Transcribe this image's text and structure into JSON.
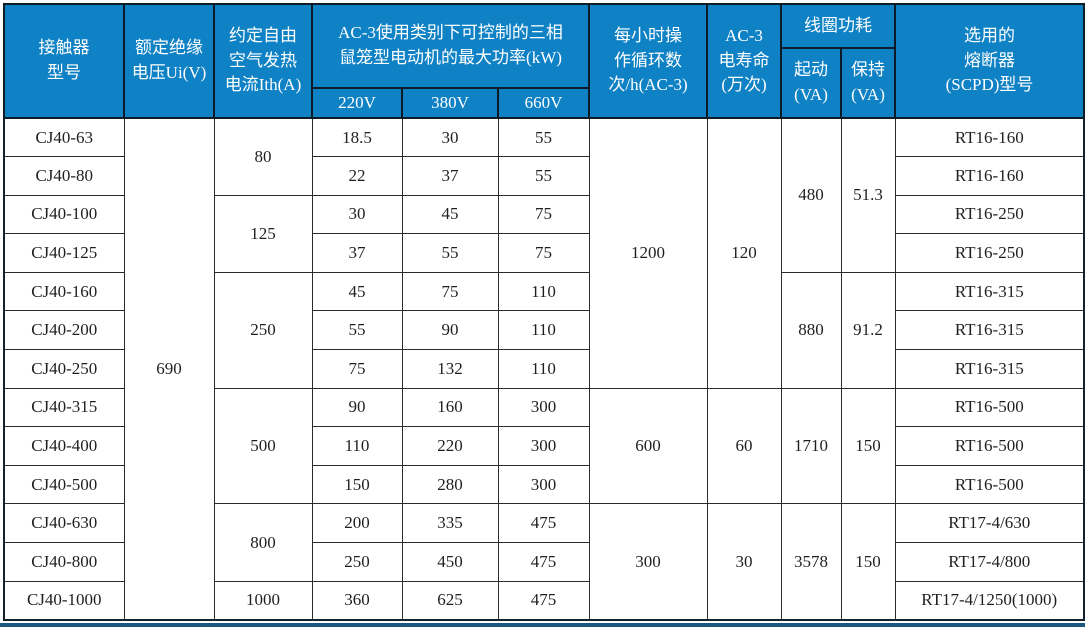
{
  "table": {
    "header": {
      "model": "接触器\n型号",
      "insulation": "额定绝缘\n电压Ui(V)",
      "thermal": "约定自由\n空气发热\n电流Ith(A)",
      "ac3_power": "AC-3使用类别下可控制的三相\n鼠笼型电动机的最大功率(kW)",
      "voltages": [
        "220V",
        "380V",
        "660V"
      ],
      "cycles": "每小时操\n作循环数\n次/h(AC-3)",
      "life": "AC-3\n电寿命\n(万次)",
      "coil": "线圈功耗",
      "coil_start": "起动\n(VA)",
      "coil_hold": "保持\n(VA)",
      "fuse": "选用的\n熔断器\n(SCPD)型号"
    },
    "rows": [
      {
        "model": "CJ40-63",
        "kw220": "18.5",
        "kw380": "30",
        "kw660": "55",
        "fuse": "RT16-160"
      },
      {
        "model": "CJ40-80",
        "kw220": "22",
        "kw380": "37",
        "kw660": "55",
        "fuse": "RT16-160"
      },
      {
        "model": "CJ40-100",
        "kw220": "30",
        "kw380": "45",
        "kw660": "75",
        "fuse": "RT16-250"
      },
      {
        "model": "CJ40-125",
        "kw220": "37",
        "kw380": "55",
        "kw660": "75",
        "fuse": "RT16-250"
      },
      {
        "model": "CJ40-160",
        "kw220": "45",
        "kw380": "75",
        "kw660": "110",
        "fuse": "RT16-315"
      },
      {
        "model": "CJ40-200",
        "kw220": "55",
        "kw380": "90",
        "kw660": "110",
        "fuse": "RT16-315"
      },
      {
        "model": "CJ40-250",
        "kw220": "75",
        "kw380": "132",
        "kw660": "110",
        "fuse": "RT16-315"
      },
      {
        "model": "CJ40-315",
        "kw220": "90",
        "kw380": "160",
        "kw660": "300",
        "fuse": "RT16-500"
      },
      {
        "model": "CJ40-400",
        "kw220": "110",
        "kw380": "220",
        "kw660": "300",
        "fuse": "RT16-500"
      },
      {
        "model": "CJ40-500",
        "kw220": "150",
        "kw380": "280",
        "kw660": "300",
        "fuse": "RT16-500"
      },
      {
        "model": "CJ40-630",
        "kw220": "200",
        "kw380": "335",
        "kw660": "475",
        "fuse": "RT17-4/630"
      },
      {
        "model": "CJ40-800",
        "kw220": "250",
        "kw380": "450",
        "kw660": "475",
        "fuse": "RT17-4/800"
      },
      {
        "model": "CJ40-1000",
        "kw220": "360",
        "kw380": "625",
        "kw660": "475",
        "fuse": "RT17-4/1250(1000)"
      }
    ],
    "merged": {
      "insulation": [
        {
          "value": "690",
          "span": 13
        }
      ],
      "thermal": [
        {
          "value": "80",
          "span": 2
        },
        {
          "value": "125",
          "span": 2
        },
        {
          "value": "250",
          "span": 3
        },
        {
          "value": "500",
          "span": 3
        },
        {
          "value": "800",
          "span": 2
        },
        {
          "value": "1000",
          "span": 1
        }
      ],
      "cycles": [
        {
          "value": "1200",
          "span": 7
        },
        {
          "value": "600",
          "span": 3
        },
        {
          "value": "300",
          "span": 3
        }
      ],
      "life": [
        {
          "value": "120",
          "span": 7
        },
        {
          "value": "60",
          "span": 3
        },
        {
          "value": "30",
          "span": 3
        }
      ],
      "coil_start": [
        {
          "value": "480",
          "span": 4
        },
        {
          "value": "880",
          "span": 3
        },
        {
          "value": "1710",
          "span": 3
        },
        {
          "value": "3578",
          "span": 3
        }
      ],
      "coil_hold": [
        {
          "value": "51.3",
          "span": 4
        },
        {
          "value": "91.2",
          "span": 3
        },
        {
          "value": "150",
          "span": 3
        },
        {
          "value": "150",
          "span": 3
        }
      ]
    },
    "colors": {
      "header_bg": "#0f81c5",
      "header_text": "#ffffff",
      "border_dark": "#15222c",
      "bottom_bar": "#1b577f"
    }
  }
}
